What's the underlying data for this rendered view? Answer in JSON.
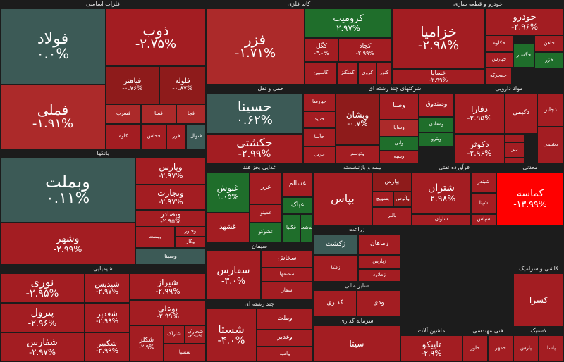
{
  "chart_data": {
    "type": "treemap",
    "title": "",
    "colors": {
      "neg_strong": "#8e1b1b",
      "neg": "#a31d22",
      "neg_light": "#ac2a2a",
      "neutral": "#3c5a56",
      "pos": "#1f6e2b",
      "neg_extreme": "#ff0000"
    },
    "sectors": [
      {
        "name": "فلزات اساسی",
        "tiles": [
          {
            "name": "فولاد",
            "value": "۰.۰%",
            "pct": 0.0
          },
          {
            "name": "فملی",
            "value": "-۱.۹۱%",
            "pct": -1.91
          },
          {
            "name": "ذوب",
            "value": "-۲.۷۵%",
            "pct": -2.75
          },
          {
            "name": "فباهنر",
            "value": "-۰.۷۶%",
            "pct": -0.76
          },
          {
            "name": "فلوله",
            "value": "-۰.۸۷%",
            "pct": -0.87
          },
          {
            "name": "فسرب",
            "value": "",
            "pct": -2.0
          },
          {
            "name": "فسا",
            "value": "",
            "pct": -2.1
          },
          {
            "name": "فجا",
            "value": "",
            "pct": -2.2
          },
          {
            "name": "کاوه",
            "value": "",
            "pct": -2.9
          },
          {
            "name": "فخاس",
            "value": "",
            "pct": -2.9
          },
          {
            "name": "فزر",
            "value": "",
            "pct": -2.9
          },
          {
            "name": "فنوال",
            "value": "",
            "pct": 0.5
          }
        ]
      },
      {
        "name": "کانه فلزی",
        "tiles": [
          {
            "name": "فزر",
            "value": "-۱.۷۱%",
            "pct": -1.71
          },
          {
            "name": "کرومیت",
            "value": "۲.۹۷%",
            "pct": 2.97
          },
          {
            "name": "کگل",
            "value": "-۳.۰%",
            "pct": -3.0
          },
          {
            "name": "کچاد",
            "value": "-۲.۹۹%",
            "pct": -2.99
          },
          {
            "name": "کاسپین",
            "value": "",
            "pct": -2.9
          },
          {
            "name": "کمنگنز",
            "value": "",
            "pct": -2.9
          },
          {
            "name": "کروی",
            "value": "",
            "pct": -2.9
          },
          {
            "name": "کنور",
            "value": "",
            "pct": -2.9
          }
        ]
      },
      {
        "name": "خودرو و قطعه سازی",
        "tiles": [
          {
            "name": "خزامیا",
            "value": "-۲.۹۸%",
            "pct": -2.98
          },
          {
            "name": "خودرو",
            "value": "-۲.۹۶%",
            "pct": -2.96
          },
          {
            "name": "خساپا",
            "value": "-۲.۹۹%",
            "pct": -2.99
          },
          {
            "name": "خگستر",
            "value": "",
            "pct": 1.2
          },
          {
            "name": "خکاوه",
            "value": "",
            "pct": -2.9
          },
          {
            "name": "خپارس",
            "value": "",
            "pct": -2.9
          },
          {
            "name": "خمحرکه",
            "value": "",
            "pct": -2.9
          },
          {
            "name": "خاهن",
            "value": "",
            "pct": -2.9
          },
          {
            "name": "خزر",
            "value": "",
            "pct": 1.5
          }
        ]
      },
      {
        "name": "حمل و نقل",
        "tiles": [
          {
            "name": "حسینا",
            "value": "۰.۶۲%",
            "pct": 0.62
          },
          {
            "name": "حکشتی",
            "value": "-۲.۹۹%",
            "pct": -2.99
          },
          {
            "name": "حپارسا",
            "value": "",
            "pct": -2.9
          },
          {
            "name": "حتاید",
            "value": "",
            "pct": -2.9
          },
          {
            "name": "حآسا",
            "value": "",
            "pct": -2.9
          },
          {
            "name": "حریل",
            "value": "",
            "pct": -2.9
          }
        ]
      },
      {
        "name": "شرکتهای چند رشته ای",
        "tiles": [
          {
            "name": "وبشان",
            "value": "-۰.۷%",
            "pct": -0.7
          },
          {
            "name": "وصنا",
            "value": "",
            "pct": -2.9
          },
          {
            "name": "وصندوق",
            "value": "",
            "pct": -2.9
          },
          {
            "name": "ومعادن",
            "value": "",
            "pct": 1.5
          },
          {
            "name": "وساپا",
            "value": "",
            "pct": -2.0
          },
          {
            "name": "وتوسم",
            "value": "",
            "pct": -2.9
          },
          {
            "name": "واتی",
            "value": "",
            "pct": 1.0
          },
          {
            "name": "وپترو",
            "value": "",
            "pct": 1.5
          },
          {
            "name": "وسپه",
            "value": "",
            "pct": -2.9
          }
        ]
      },
      {
        "name": "مواد دارویی",
        "tiles": [
          {
            "name": "دفارا",
            "value": "-۲.۹۵%",
            "pct": -2.95
          },
          {
            "name": "دکوثر",
            "value": "-۲.۹۶%",
            "pct": -2.96
          },
          {
            "name": "دکیمی",
            "value": "",
            "pct": -2.9
          },
          {
            "name": "دجابر",
            "value": "",
            "pct": -2.9
          },
          {
            "name": "دسبحا",
            "value": "",
            "pct": -2.9
          },
          {
            "name": "دشیمی",
            "value": "",
            "pct": -2.9
          },
          {
            "name": "دلر",
            "value": "",
            "pct": -5.0
          }
        ]
      },
      {
        "name": "بانکها",
        "tiles": [
          {
            "name": "وبملت",
            "value": "۰.۱۱%",
            "pct": 0.11
          },
          {
            "name": "وپارس",
            "value": "-۲.۹۷%",
            "pct": -2.97
          },
          {
            "name": "وتجارت",
            "value": "-۲.۹۷%",
            "pct": -2.97
          },
          {
            "name": "وبصادر",
            "value": "-۲.۹۵%",
            "pct": -2.95
          },
          {
            "name": "وشهر",
            "value": "-۲.۹۹%",
            "pct": -2.99
          },
          {
            "name": "وپست",
            "value": "",
            "pct": -2.9
          },
          {
            "name": "وخاور",
            "value": "",
            "pct": -2.9
          },
          {
            "name": "وکار",
            "value": "",
            "pct": -2.9
          },
          {
            "name": "وسینا",
            "value": "",
            "pct": 0.2
          }
        ]
      },
      {
        "name": "غذایی بجز قند",
        "tiles": [
          {
            "name": "غنوش",
            "value": "۱.۰۵%",
            "pct": 1.05
          },
          {
            "name": "غزر",
            "value": "",
            "pct": -2.9
          },
          {
            "name": "غسالم",
            "value": "",
            "pct": -2.9
          },
          {
            "name": "غپاک",
            "value": "",
            "pct": 2.95
          },
          {
            "name": "غمینو",
            "value": "",
            "pct": -2.9
          },
          {
            "name": "غشهد",
            "value": "",
            "pct": -2.9
          },
          {
            "name": "غشوکو",
            "value": "",
            "pct": 1.5
          },
          {
            "name": "غگلپا",
            "value": "",
            "pct": 1.7
          },
          {
            "name": "غدشت",
            "value": "",
            "pct": 2.0
          },
          {
            "name": "غبهار",
            "value": "",
            "pct": -2.9
          },
          {
            "name": "غدیس",
            "value": "",
            "pct": -2.9
          },
          {
            "name": "غگلستا",
            "value": "",
            "pct": -2.9
          }
        ]
      },
      {
        "name": "بیمه و بازنشسته",
        "tiles": [
          {
            "name": "بپاس",
            "value": "",
            "pct": -2.9
          },
          {
            "name": "بپارس",
            "value": "",
            "pct": -1.0
          },
          {
            "name": "بسویچ",
            "value": "",
            "pct": -2.9
          },
          {
            "name": "وآتوس",
            "value": "",
            "pct": -1.0
          },
          {
            "name": "بالبر",
            "value": "",
            "pct": -2.9
          },
          {
            "name": "ودانا",
            "value": "",
            "pct": -2.9
          }
        ]
      },
      {
        "name": "فرآورده نفتی",
        "tiles": [
          {
            "name": "شتران",
            "value": "-۲.۹۸%",
            "pct": -2.98
          },
          {
            "name": "شبندر",
            "value": "",
            "pct": -2.9
          },
          {
            "name": "شپنا",
            "value": "",
            "pct": -2.9
          },
          {
            "name": "شاوان",
            "value": "",
            "pct": -2.9
          },
          {
            "name": "شپاس",
            "value": "",
            "pct": -2.9
          },
          {
            "name": "شبهرن",
            "value": "",
            "pct": -2.9
          }
        ]
      },
      {
        "name": "سیمان",
        "tiles": [
          {
            "name": "سفارس",
            "value": "-۳.۰%",
            "pct": -3.0
          },
          {
            "name": "سخاش",
            "value": "",
            "pct": -2.9
          },
          {
            "name": "سصفها",
            "value": "",
            "pct": -2.9
          },
          {
            "name": "سفار",
            "value": "",
            "pct": -2.9
          },
          {
            "name": "ساروم",
            "value": "",
            "pct": -2.9
          },
          {
            "name": "سبجنو",
            "value": "",
            "pct": -2.9
          },
          {
            "name": "سخزر",
            "value": "",
            "pct": -2.9
          },
          {
            "name": "سشمال",
            "value": "",
            "pct": -2.9
          },
          {
            "name": "سکرما",
            "value": "",
            "pct": -2.9
          },
          {
            "name": "ساربیل",
            "value": "",
            "pct": -2.9
          }
        ]
      },
      {
        "name": "چند رشته ای",
        "tiles": [
          {
            "name": "شستا",
            "value": "-۴.۰%",
            "pct": -4.0
          },
          {
            "name": "وملت",
            "value": "",
            "pct": -2.9
          },
          {
            "name": "وغدیر",
            "value": "",
            "pct": -2.9
          },
          {
            "name": "وامید",
            "value": "",
            "pct": -2.9
          }
        ]
      },
      {
        "name": "زراعت",
        "tiles": [
          {
            "name": "زکشت",
            "value": "",
            "pct": 0.2
          },
          {
            "name": "زماهان",
            "value": "",
            "pct": -2.9
          },
          {
            "name": "زپارس",
            "value": "",
            "pct": -2.9
          },
          {
            "name": "زفکا",
            "value": "",
            "pct": -2.9
          },
          {
            "name": "زشریف",
            "value": "",
            "pct": 1.5
          },
          {
            "name": "زملارد",
            "value": "",
            "pct": -2.9
          },
          {
            "name": "زگلدشت",
            "value": "",
            "pct": -2.9
          },
          {
            "name": "زدشت",
            "value": "",
            "pct": -2.9
          }
        ]
      },
      {
        "name": "ماشین آلات",
        "tiles": [
          {
            "name": "تاپیکو",
            "value": "-۲.۹%",
            "pct": -2.9
          },
          {
            "name": "تپکو",
            "value": "",
            "pct": -2.9
          }
        ]
      },
      {
        "name": "سرمایه گذاری",
        "tiles": [
          {
            "name": "سیتا",
            "value": "",
            "pct": -2.9
          },
          {
            "name": "ومعادن",
            "value": "",
            "pct": -2.9
          },
          {
            "name": "وسپهر",
            "value": "",
            "pct": -2.9
          }
        ]
      },
      {
        "name": "معدنی",
        "tiles": [
          {
            "name": "کماسه",
            "value": "-۱۳.۹۹%",
            "pct": -13.99
          }
        ]
      },
      {
        "name": "شیمیایی",
        "tiles": [
          {
            "name": "نوری",
            "value": "-۲.۹۵%",
            "pct": -2.95
          },
          {
            "name": "پترول",
            "value": "-۲.۹۶%",
            "pct": -2.96
          },
          {
            "name": "شفارس",
            "value": "-۲.۹۷%",
            "pct": -2.97
          },
          {
            "name": "شپدیس",
            "value": "-۲.۹۷%",
            "pct": -2.97
          },
          {
            "name": "شغدیر",
            "value": "-۲.۹۹%",
            "pct": -2.99
          },
          {
            "name": "شیراز",
            "value": "-۲.۹۹%",
            "pct": -2.99
          },
          {
            "name": "بوعلی",
            "value": "-۲.۹۹%",
            "pct": -2.99
          },
          {
            "name": "شکبیر",
            "value": "-۲.۹۹%",
            "pct": -2.99
          },
          {
            "name": "شکلر",
            "value": "-۲.۹%",
            "pct": -2.9
          },
          {
            "name": "شاراک",
            "value": "",
            "pct": -2.9
          },
          {
            "name": "شخارک",
            "value": "-۲.۹۸%",
            "pct": -2.98
          },
          {
            "name": "شسپا",
            "value": "",
            "pct": -2.9
          },
          {
            "name": "شلعاب",
            "value": "",
            "pct": 1.2
          },
          {
            "name": "شپلی",
            "value": "",
            "pct": -2.9
          },
          {
            "name": "ساینا",
            "value": "",
            "pct": -2.9
          }
        ]
      },
      {
        "name": "سایر مالی",
        "tiles": [
          {
            "name": "کدبری",
            "value": "",
            "pct": -2.9
          },
          {
            "name": "ودی",
            "value": "",
            "pct": -2.9
          }
        ]
      },
      {
        "name": "فنی مهندسی",
        "tiles": [
          {
            "name": "خاور",
            "value": "",
            "pct": -2.9
          },
          {
            "name": "خمهر",
            "value": "",
            "pct": -2.9
          }
        ]
      },
      {
        "name": "لاستیک",
        "tiles": [
          {
            "name": "پارس",
            "value": "",
            "pct": -2.9
          },
          {
            "name": "پاسا",
            "value": "",
            "pct": -2.9
          }
        ]
      },
      {
        "name": "کاشی و سرامیک",
        "tiles": [
          {
            "name": "کسرا",
            "value": "",
            "pct": -2.9
          }
        ]
      }
    ]
  }
}
